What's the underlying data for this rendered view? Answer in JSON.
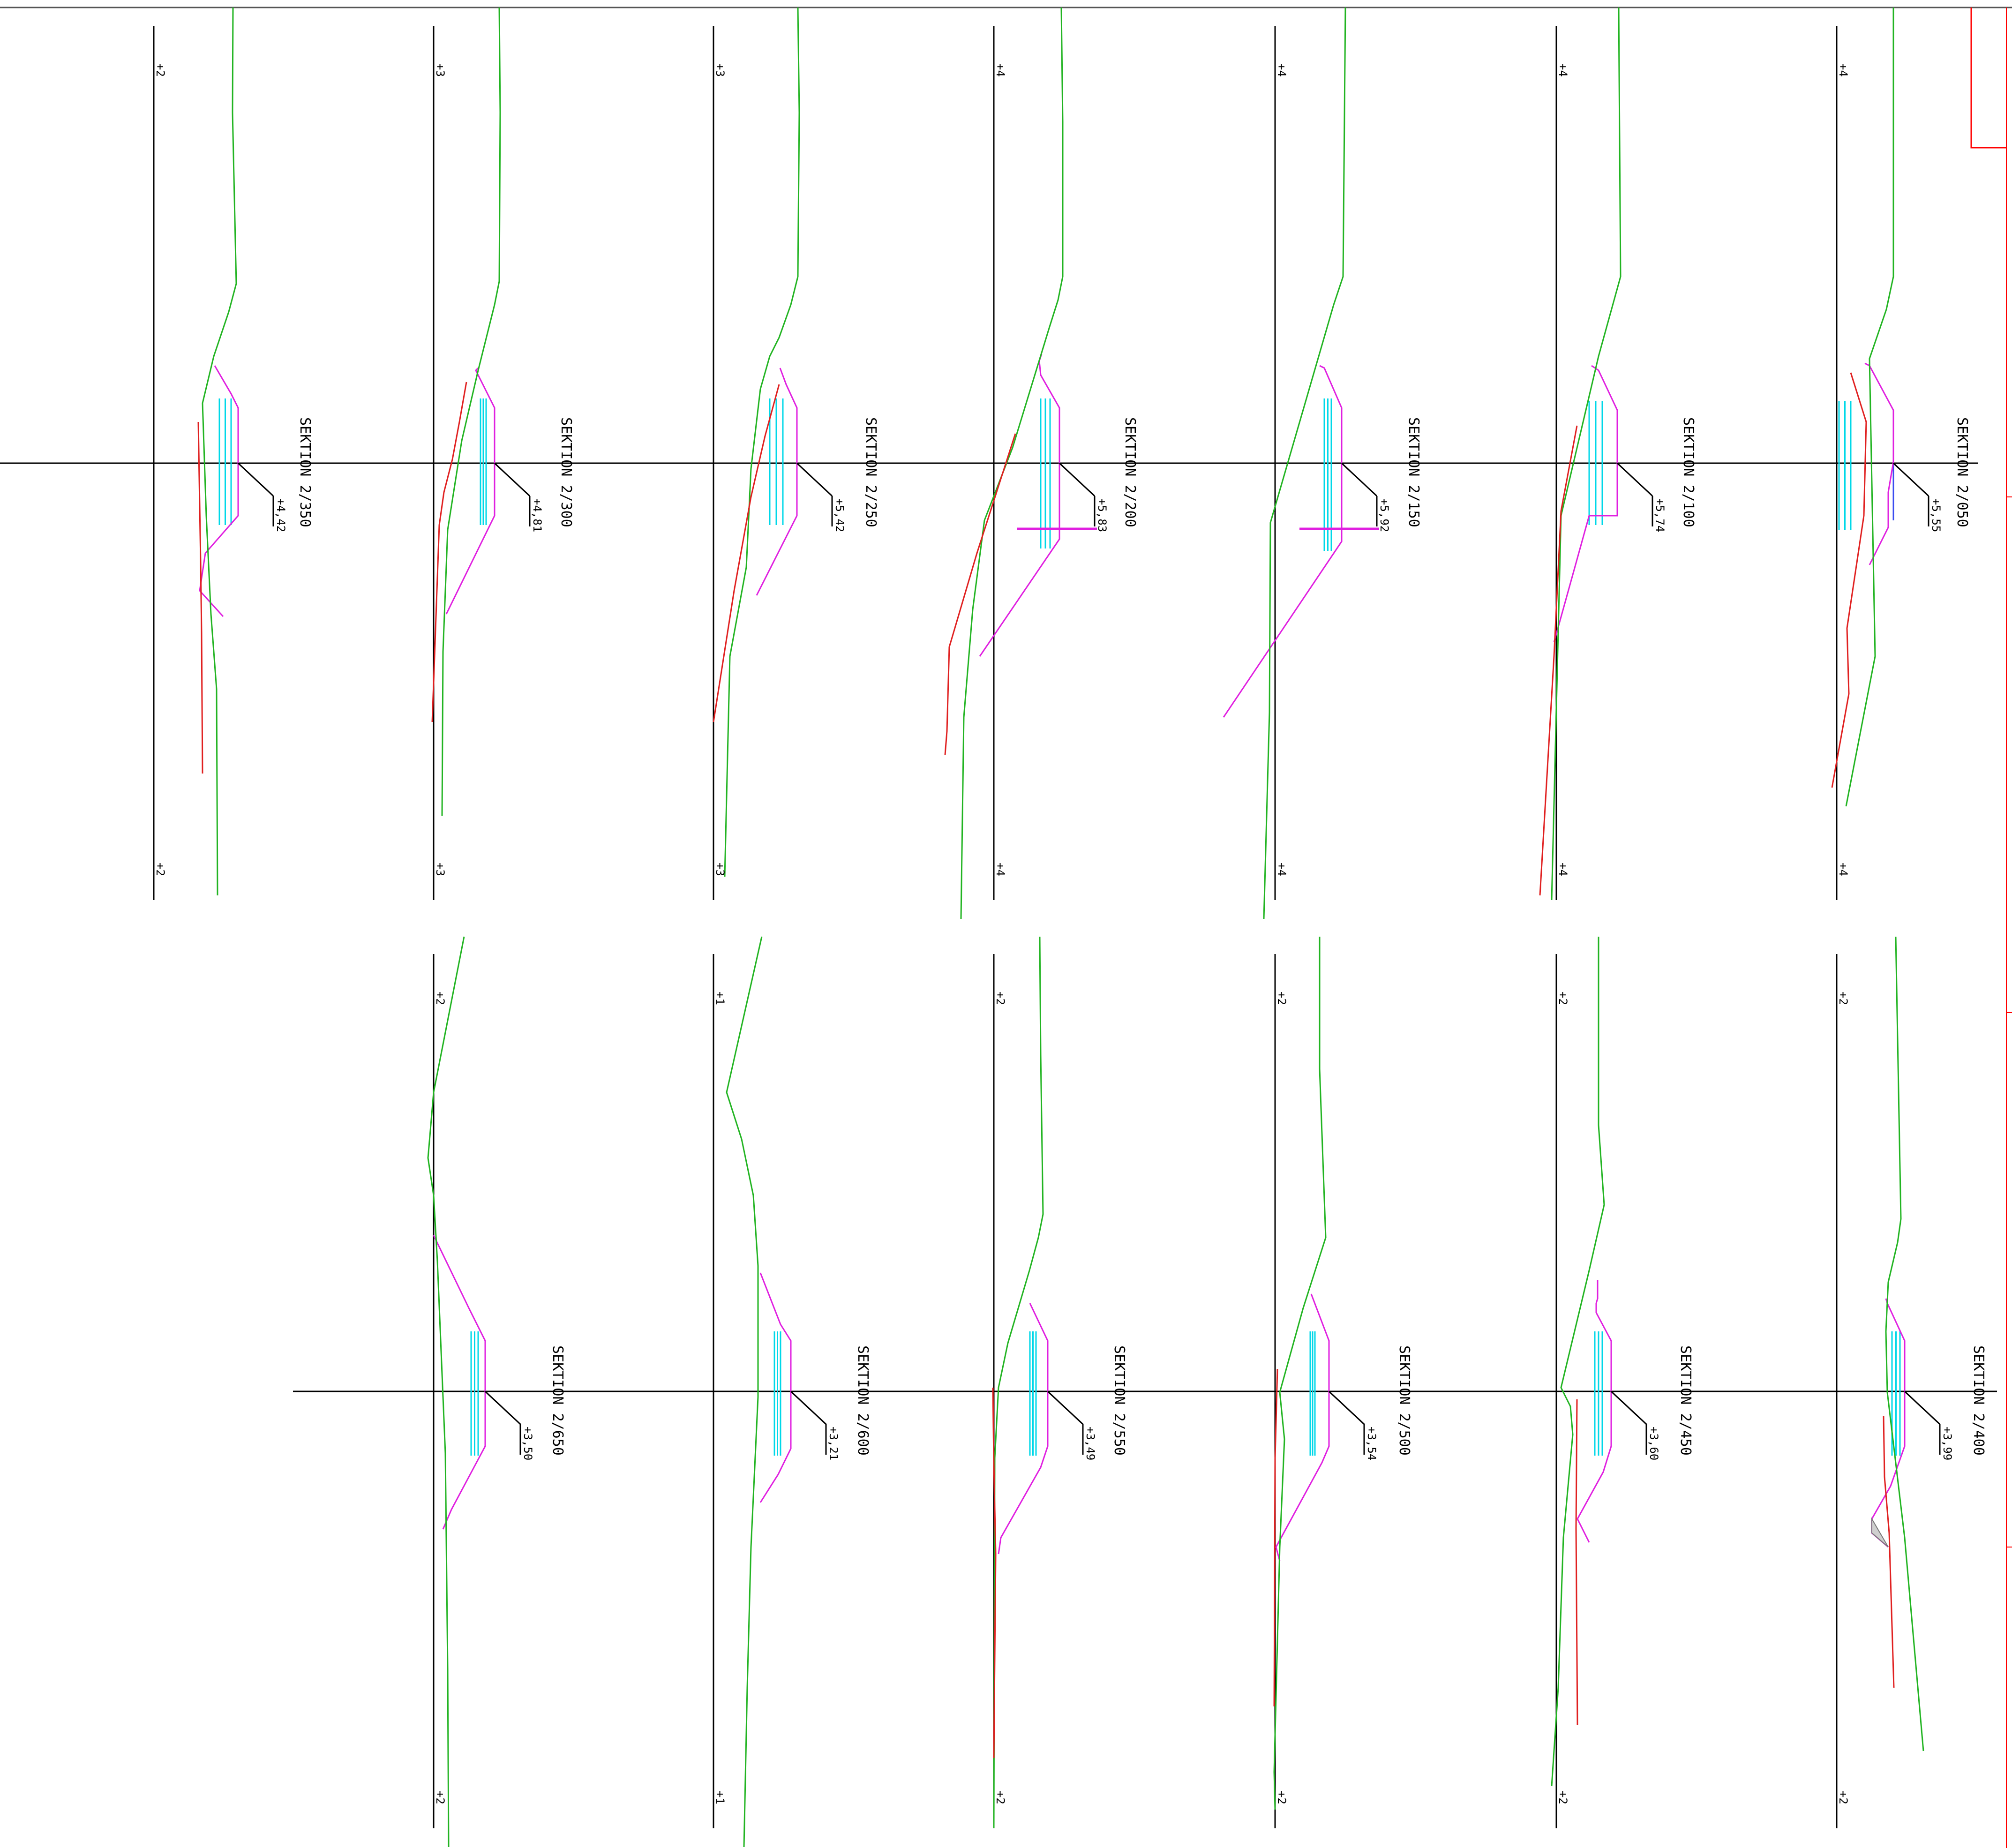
{
  "drawing": {
    "colors": {
      "axis": "#000000",
      "terrain": "#22b422",
      "old_profile": "#e02020",
      "channel": "#e020e0",
      "bed": "#3b4cf0",
      "hatch": "#00d8e8",
      "frame": "#ff0000"
    },
    "sections": [
      {
        "id": "s-2-050",
        "label": "SEKTION 2/050",
        "elevation": "+5,55",
        "top_mark": "+4",
        "bottom_mark": "+4"
      },
      {
        "id": "s-2-100",
        "label": "SEKTION 2/100",
        "elevation": "+5,74",
        "top_mark": "+4",
        "bottom_mark": "+4"
      },
      {
        "id": "s-2-150",
        "label": "SEKTION 2/150",
        "elevation": "+5,92",
        "top_mark": "+4",
        "bottom_mark": "+4"
      },
      {
        "id": "s-2-200",
        "label": "SEKTION 2/200",
        "elevation": "+5,83",
        "top_mark": "+4",
        "bottom_mark": "+4"
      },
      {
        "id": "s-2-250",
        "label": "SEKTION 2/250",
        "elevation": "+5,42",
        "top_mark": "+3",
        "bottom_mark": "+3"
      },
      {
        "id": "s-2-300",
        "label": "SEKTION 2/300",
        "elevation": "+4,81",
        "top_mark": "+3",
        "bottom_mark": "+3"
      },
      {
        "id": "s-2-350",
        "label": "SEKTION 2/350",
        "elevation": "+4,42",
        "top_mark": "+2",
        "bottom_mark": "+2"
      },
      {
        "id": "s-2-400",
        "label": "SEKTION 2/400",
        "elevation": "+3,99",
        "top_mark": "+2",
        "bottom_mark": "+2"
      },
      {
        "id": "s-2-450",
        "label": "SEKTION 2/450",
        "elevation": "+3,60",
        "top_mark": "+2",
        "bottom_mark": "+2"
      },
      {
        "id": "s-2-500",
        "label": "SEKTION 2/500",
        "elevation": "+3,54",
        "top_mark": "+2",
        "bottom_mark": "+2"
      },
      {
        "id": "s-2-550",
        "label": "SEKTION 2/550",
        "elevation": "+3,49",
        "top_mark": "+2",
        "bottom_mark": "+2"
      },
      {
        "id": "s-2-600",
        "label": "SEKTION 2/600",
        "elevation": "+3,21",
        "top_mark": "+1",
        "bottom_mark": "+1"
      },
      {
        "id": "s-2-650",
        "label": "SEKTION 2/650",
        "elevation": "+3,50",
        "top_mark": "+2",
        "bottom_mark": "+2"
      }
    ]
  }
}
